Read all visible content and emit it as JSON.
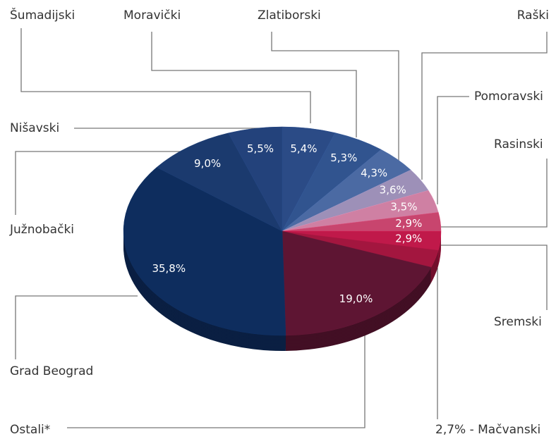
{
  "chart_data": {
    "type": "pie",
    "categories": [
      "Šumadijski",
      "Moravički",
      "Zlatiborski",
      "Raški",
      "Pomoravski",
      "Rasinski",
      "Sremski",
      "2,7% - Mačvanski",
      "Ostali*",
      "Grad Beograd",
      "Južnobački",
      "Nišavski"
    ],
    "values": [
      5.4,
      5.3,
      4.3,
      3.6,
      3.5,
      2.9,
      2.9,
      2.7,
      19.0,
      35.8,
      9.0,
      5.5
    ],
    "value_labels": [
      "5,4%",
      "5,3%",
      "4,3%",
      "3,6%",
      "3,5%",
      "2,9%",
      "2,9%",
      null,
      "19,0%",
      "35,8%",
      "9,0%",
      "5,5%"
    ],
    "colors": [
      "#2b4b86",
      "#31548f",
      "#4b6aa3",
      "#9d90b8",
      "#cf80a3",
      "#c8456e",
      "#c0194a",
      "#a3163f",
      "#5e1533",
      "#0e2d5e",
      "#1b3a6e",
      "#23427b"
    ]
  }
}
